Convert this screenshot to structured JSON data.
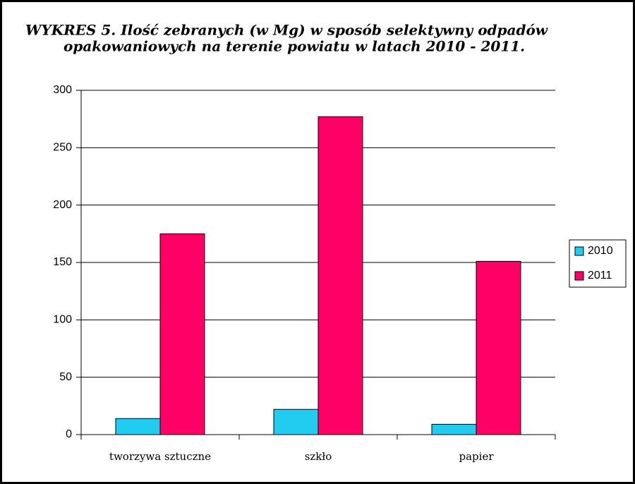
{
  "chart_data": {
    "type": "bar",
    "title": [
      "WYKRES 5. Ilość zebranych (w Mg) w sposób selektywny odpadów",
      "opakowaniowych na terenie powiatu w latach 2010 - 2011."
    ],
    "categories": [
      "tworzywa sztuczne",
      "szkło",
      "papier"
    ],
    "series": [
      {
        "name": "2010",
        "color": "#22ccf0",
        "values": [
          14,
          22,
          9
        ]
      },
      {
        "name": "2011",
        "color": "#ff0066",
        "values": [
          175,
          277,
          151
        ]
      }
    ],
    "ylim": [
      0,
      300
    ],
    "yticks": [
      0,
      50,
      100,
      150,
      200,
      250,
      300
    ],
    "grid": true,
    "legend": "right"
  }
}
